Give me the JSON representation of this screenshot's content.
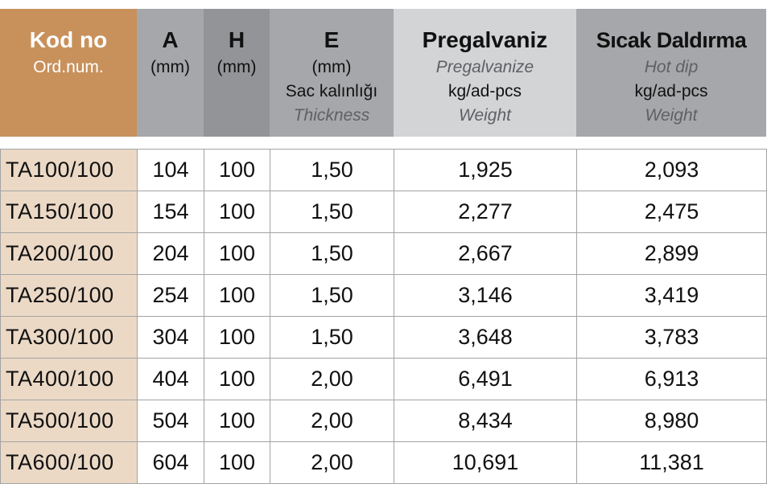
{
  "header": {
    "code": {
      "title": "Kod no",
      "sub": "Ord.num."
    },
    "a": {
      "title": "A",
      "unit": "(mm)"
    },
    "h": {
      "title": "H",
      "unit": "(mm)"
    },
    "e": {
      "title": "E",
      "unit": "(mm)",
      "sub": "Sac kalınlığı",
      "italic": "Thickness"
    },
    "pregalvaniz": {
      "title": "Pregalvaniz",
      "italic": "Pregalvanize",
      "unit": "kg/ad-pcs",
      "italic2": "Weight"
    },
    "hotdip": {
      "title": "Sıcak Daldırma",
      "italic": "Hot dip",
      "unit": "kg/ad-pcs",
      "italic2": "Weight"
    }
  },
  "colors": {
    "code_header": "#c8915c",
    "code_cell": "#ebd9c6",
    "gray": "#a6a7aa",
    "dark_gray": "#939497",
    "light_gray": "#d3d4d6"
  },
  "rows": [
    [
      "TA100/100",
      "104",
      "100",
      "1,50",
      "1,925",
      "2,093"
    ],
    [
      "TA150/100",
      "154",
      "100",
      "1,50",
      "2,277",
      "2,475"
    ],
    [
      "TA200/100",
      "204",
      "100",
      "1,50",
      "2,667",
      "2,899"
    ],
    [
      "TA250/100",
      "254",
      "100",
      "1,50",
      "3,146",
      "3,419"
    ],
    [
      "TA300/100",
      "304",
      "100",
      "1,50",
      "3,648",
      "3,783"
    ],
    [
      "TA400/100",
      "404",
      "100",
      "2,00",
      "6,491",
      "6,913"
    ],
    [
      "TA500/100",
      "504",
      "100",
      "2,00",
      "8,434",
      "8,980"
    ],
    [
      "TA600/100",
      "604",
      "100",
      "2,00",
      "10,691",
      "11,381"
    ]
  ]
}
